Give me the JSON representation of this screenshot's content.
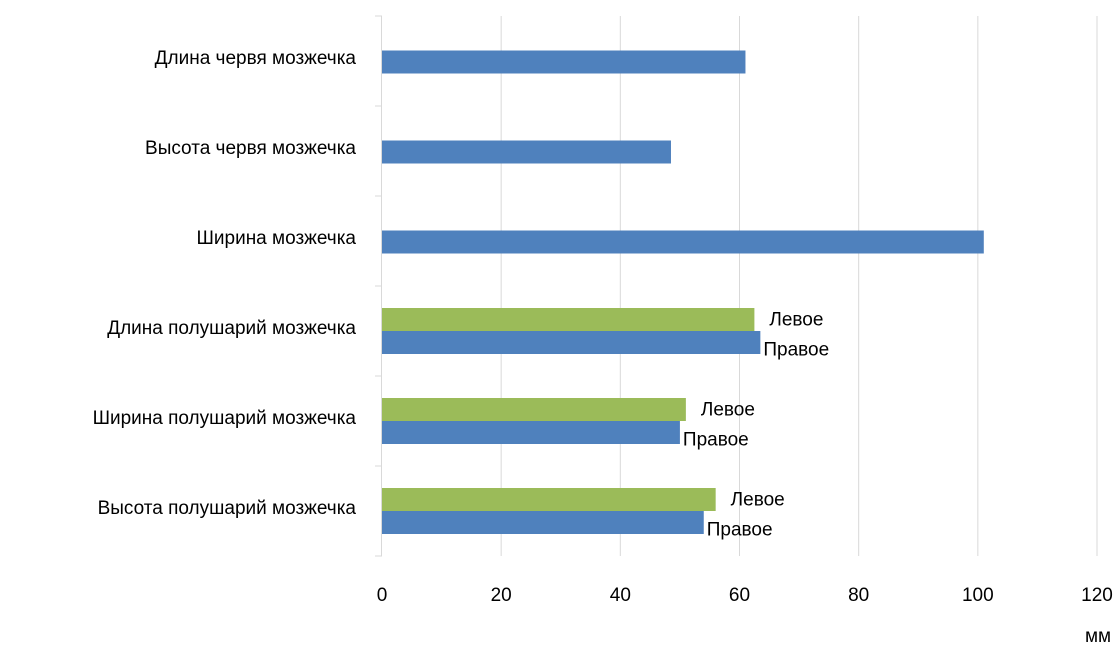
{
  "chart_data": {
    "type": "bar",
    "orientation": "horizontal",
    "categories": [
      "Длина червя мозжечка",
      "Высота червя мозжечка",
      "Ширина мозжечка",
      "Длина полушарий мозжечка",
      "Ширина полушарий мозжечка",
      "Высота полушарий мозжечка"
    ],
    "series": [
      {
        "color": "#4f81bd",
        "values": [
          61,
          48.5,
          101,
          63.5,
          50,
          54
        ],
        "labels": [
          "",
          "",
          "",
          "Правое",
          "Правое",
          "Правое"
        ]
      },
      {
        "color": "#9bbb59",
        "values": [
          null,
          null,
          null,
          62.5,
          51,
          56
        ],
        "labels": [
          "",
          "",
          "",
          "Левое",
          "Левое",
          "Левое"
        ]
      }
    ],
    "xlim": [
      0,
      120
    ],
    "xticks": [
      0,
      20,
      40,
      60,
      80,
      100,
      120
    ],
    "xtick_labels": [
      "0",
      "20",
      "40",
      "60",
      "80",
      "100",
      "120"
    ],
    "xlabel": "мм",
    "title": "",
    "legend": "none",
    "grid": {
      "vertical": true,
      "horizontal": false,
      "color": "#d9d9d9"
    }
  }
}
